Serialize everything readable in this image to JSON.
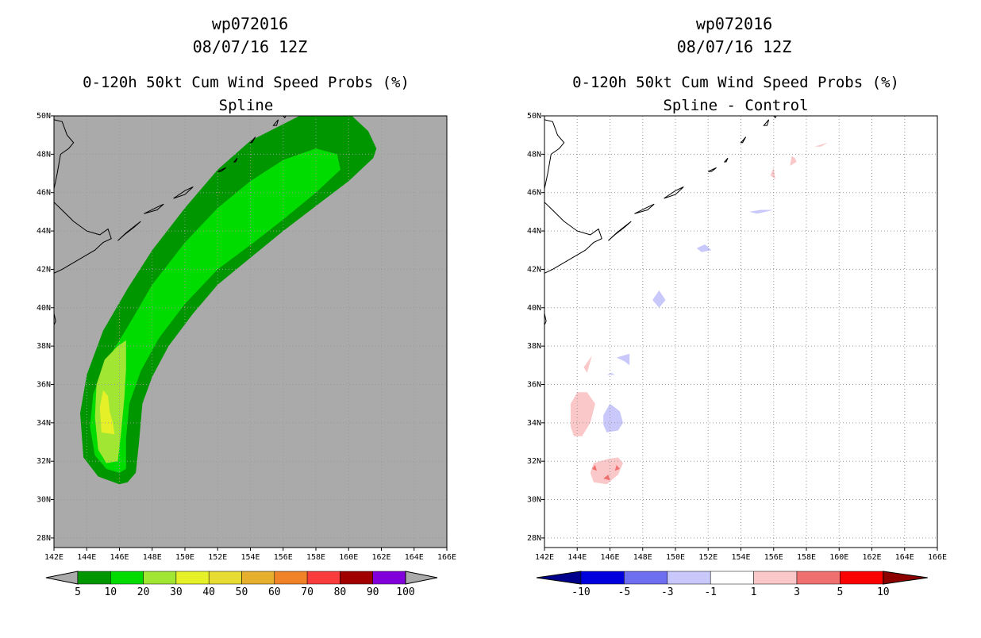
{
  "panels": [
    {
      "id": "left",
      "title_line1": "wp072016",
      "title_line2": "08/07/16 12Z",
      "title_line3": "0-120h 50kt Cum Wind Speed Probs (%)",
      "title_line4": "Spline",
      "background_color": "#aaaaaa"
    },
    {
      "id": "right",
      "title_line1": "wp072016",
      "title_line2": "08/07/16 12Z",
      "title_line3": "0-120h 50kt Cum Wind Speed Probs (%)",
      "title_line4": "Spline - Control",
      "background_color": "#ffffff"
    }
  ],
  "axes": {
    "x_ticks": [
      "142E",
      "144E",
      "146E",
      "148E",
      "150E",
      "152E",
      "154E",
      "156E",
      "158E",
      "160E",
      "162E",
      "164E",
      "166E"
    ],
    "y_ticks": [
      "28N",
      "30N",
      "32N",
      "34N",
      "36N",
      "38N",
      "40N",
      "42N",
      "44N",
      "46N",
      "48N",
      "50N"
    ],
    "xlim": [
      142,
      166
    ],
    "ylim": [
      27.5,
      50
    ]
  },
  "chart_data": [
    {
      "type": "heatmap",
      "title": "0-120h 50kt Cum Wind Speed Probs (%) Spline",
      "units": "%",
      "colorbar": {
        "labels": [
          "5",
          "10",
          "20",
          "30",
          "40",
          "50",
          "60",
          "70",
          "80",
          "90",
          "100"
        ],
        "colors": [
          "#009600",
          "#00dc00",
          "#a0e632",
          "#e6f028",
          "#e6dc32",
          "#e6af2d",
          "#f08228",
          "#fa3c3c",
          "#a00000",
          "#8200dc"
        ]
      },
      "regions": [
        {
          "level": "5-10",
          "color": "#009600",
          "polygon": [
            [
              146.0,
              30.8
            ],
            [
              146.5,
              30.9
            ],
            [
              147.0,
              31.4
            ],
            [
              147.2,
              33.0
            ],
            [
              147.4,
              35.0
            ],
            [
              148.0,
              36.4
            ],
            [
              149.0,
              38.0
            ],
            [
              150.5,
              39.7
            ],
            [
              152.0,
              41.2
            ],
            [
              154.0,
              42.6
            ],
            [
              156.0,
              44.0
            ],
            [
              158.0,
              45.3
            ],
            [
              160.0,
              46.6
            ],
            [
              161.5,
              47.8
            ],
            [
              161.7,
              48.3
            ],
            [
              161.2,
              49.2
            ],
            [
              160.2,
              50.0
            ],
            [
              157.0,
              50.0
            ],
            [
              154.0,
              48.7
            ],
            [
              152.0,
              47.2
            ],
            [
              150.0,
              45.2
            ],
            [
              148.0,
              43.0
            ],
            [
              146.5,
              41.0
            ],
            [
              145.0,
              38.8
            ],
            [
              144.0,
              36.5
            ],
            [
              143.6,
              34.5
            ],
            [
              143.8,
              32.2
            ],
            [
              144.7,
              31.2
            ]
          ]
        },
        {
          "level": "10-20",
          "color": "#00dc00",
          "polygon": [
            [
              146.0,
              31.4
            ],
            [
              146.4,
              31.6
            ],
            [
              146.4,
              33.2
            ],
            [
              146.6,
              35.0
            ],
            [
              147.3,
              36.7
            ],
            [
              148.4,
              38.4
            ],
            [
              150.0,
              40.2
            ],
            [
              152.0,
              42.0
            ],
            [
              154.2,
              43.4
            ],
            [
              156.0,
              44.6
            ],
            [
              158.0,
              46.0
            ],
            [
              159.5,
              47.2
            ],
            [
              159.3,
              48.0
            ],
            [
              158.0,
              48.3
            ],
            [
              156.0,
              47.7
            ],
            [
              154.0,
              46.6
            ],
            [
              152.0,
              45.2
            ],
            [
              150.0,
              43.4
            ],
            [
              148.0,
              41.2
            ],
            [
              146.5,
              39.0
            ],
            [
              145.2,
              37.2
            ],
            [
              144.4,
              35.5
            ],
            [
              144.2,
              33.8
            ],
            [
              144.5,
              32.3
            ],
            [
              145.2,
              31.6
            ]
          ]
        },
        {
          "level": "20-30",
          "color": "#a0e632",
          "polygon": [
            [
              145.2,
              31.9
            ],
            [
              145.9,
              32.0
            ],
            [
              146.1,
              33.5
            ],
            [
              146.3,
              35.3
            ],
            [
              146.4,
              36.8
            ],
            [
              146.4,
              38.3
            ],
            [
              145.9,
              38.0
            ],
            [
              145.1,
              37.3
            ],
            [
              144.6,
              36.0
            ],
            [
              144.5,
              34.3
            ],
            [
              144.7,
              32.6
            ]
          ]
        },
        {
          "level": "30-40",
          "color": "#e6f028",
          "polygon": [
            [
              144.9,
              33.5
            ],
            [
              145.7,
              33.4
            ],
            [
              145.6,
              34.0
            ],
            [
              145.4,
              34.6
            ],
            [
              145.3,
              35.4
            ],
            [
              145.0,
              35.7
            ],
            [
              144.8,
              34.8
            ]
          ]
        }
      ]
    },
    {
      "type": "heatmap",
      "title": "0-120h 50kt Cum Wind Speed Probs (%) Spline - Control",
      "units": "%",
      "colorbar": {
        "labels": [
          "-10",
          "-5",
          "-3",
          "-1",
          "1",
          "3",
          "5",
          "10"
        ],
        "colors": [
          "#00008c",
          "#0000dc",
          "#6e6ef0",
          "#c8c8fa",
          "#ffffff",
          "#fac8c8",
          "#f07070",
          "#fa0000",
          "#8c0000"
        ]
      },
      "regions": [
        {
          "level": "1-3",
          "color": "#fac8c8",
          "polygon": [
            [
              145.0,
              30.9
            ],
            [
              145.8,
              30.8
            ],
            [
              146.5,
              31.3
            ],
            [
              146.8,
              31.9
            ],
            [
              146.5,
              32.2
            ],
            [
              145.8,
              32.1
            ],
            [
              145.0,
              31.9
            ],
            [
              144.8,
              31.4
            ]
          ]
        },
        {
          "level": "3-5",
          "color": "#f07070",
          "polygon": [
            [
              145.6,
              31.1
            ],
            [
              146.0,
              31.0
            ],
            [
              145.9,
              31.3
            ]
          ]
        },
        {
          "level": "3-5",
          "color": "#f07070",
          "polygon": [
            [
              144.9,
              31.6
            ],
            [
              145.2,
              31.5
            ],
            [
              145.1,
              31.8
            ]
          ]
        },
        {
          "level": "3-5",
          "color": "#f07070",
          "polygon": [
            [
              146.3,
              31.5
            ],
            [
              146.6,
              31.6
            ],
            [
              146.4,
              31.8
            ]
          ]
        },
        {
          "level": "1-3",
          "color": "#fac8c8",
          "polygon": [
            [
              143.6,
              33.8
            ],
            [
              143.6,
              35.0
            ],
            [
              144.0,
              35.6
            ],
            [
              144.6,
              35.6
            ],
            [
              145.1,
              35.0
            ],
            [
              144.8,
              34.0
            ],
            [
              144.3,
              33.3
            ],
            [
              143.8,
              33.3
            ]
          ]
        },
        {
          "level": "-3--1",
          "color": "#c8c8fa",
          "polygon": [
            [
              145.8,
              33.5
            ],
            [
              146.5,
              33.6
            ],
            [
              146.8,
              34.0
            ],
            [
              146.6,
              34.6
            ],
            [
              146.0,
              35.0
            ],
            [
              145.6,
              34.4
            ],
            [
              145.6,
              33.9
            ]
          ]
        },
        {
          "level": "1-3",
          "color": "#fac8c8",
          "polygon": [
            [
              144.4,
              36.9
            ],
            [
              144.9,
              37.5
            ],
            [
              144.7,
              36.9
            ],
            [
              144.6,
              36.6
            ]
          ]
        },
        {
          "level": "-3--1",
          "color": "#c8c8fa",
          "polygon": [
            [
              146.4,
              37.4
            ],
            [
              147.2,
              37.6
            ],
            [
              147.2,
              37.0
            ],
            [
              146.9,
              37.2
            ]
          ]
        },
        {
          "level": "-3--1",
          "color": "#c8c8fa",
          "polygon": [
            [
              145.8,
              36.5
            ],
            [
              146.3,
              36.5
            ],
            [
              146.1,
              36.6
            ]
          ]
        },
        {
          "level": "-3--1",
          "color": "#c8c8fa",
          "polygon": [
            [
              148.6,
              40.4
            ],
            [
              149.0,
              40.9
            ],
            [
              149.4,
              40.4
            ],
            [
              149.0,
              40.0
            ]
          ]
        },
        {
          "level": "-3--1",
          "color": "#c8c8fa",
          "polygon": [
            [
              151.3,
              43.1
            ],
            [
              151.8,
              43.3
            ],
            [
              152.2,
              43.0
            ],
            [
              151.6,
              42.9
            ]
          ]
        },
        {
          "level": "-3--1",
          "color": "#c8c8fa",
          "polygon": [
            [
              154.5,
              45.0
            ],
            [
              155.2,
              45.1
            ],
            [
              156.0,
              45.1
            ],
            [
              155.0,
              44.9
            ]
          ]
        },
        {
          "level": "1-3",
          "color": "#fac8c8",
          "polygon": [
            [
              155.8,
              46.9
            ],
            [
              156.0,
              47.3
            ],
            [
              156.1,
              46.7
            ]
          ]
        },
        {
          "level": "1-3",
          "color": "#fac8c8",
          "polygon": [
            [
              157.0,
              47.4
            ],
            [
              157.4,
              47.6
            ],
            [
              157.3,
              47.8
            ],
            [
              157.1,
              47.9
            ]
          ]
        },
        {
          "level": "1-3",
          "color": "#fac8c8",
          "polygon": [
            [
              158.5,
              48.4
            ],
            [
              159.3,
              48.6
            ],
            [
              158.9,
              48.4
            ]
          ]
        }
      ]
    }
  ]
}
